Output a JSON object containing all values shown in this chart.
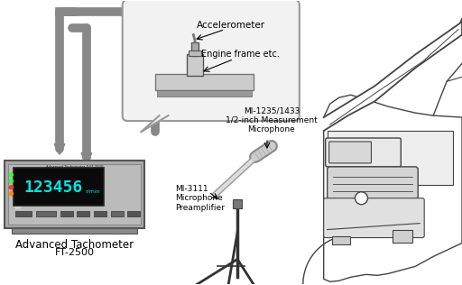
{
  "bg_color": "#ffffff",
  "accelerometer_label": "Accelerometer",
  "engine_frame_label": "Engine frame etc.",
  "microphone_label": "MI-1235/1433\n1/2-inch Measurement\nMicrophone",
  "preamp_label": "MI-3111\nMicrophone\nPreamplifier",
  "tachometer_label_line1": "Advanced Tachometer",
  "tachometer_label_line2": "FT-2500",
  "display_text": "123456",
  "display_unit": "r/min",
  "display_color": "#00e5e5",
  "cable_color": "#888888",
  "cable_lw": 7,
  "device_body_color": "#aaaaaa",
  "device_face_color": "#bbbbbb",
  "device_screen_color": "#0a0a0a",
  "car_line_color": "#444444",
  "tripod_color": "#333333",
  "bubble_fill": "#f2f2f2",
  "bubble_edge": "#999999"
}
